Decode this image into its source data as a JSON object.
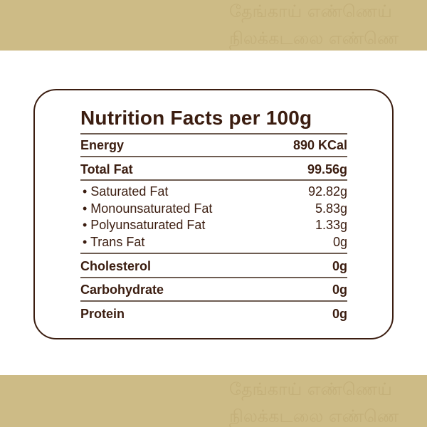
{
  "watermark": {
    "line1": "தேங்காய் எண்ணெய்",
    "line2": "நிலக்கடலை எண்ணெ"
  },
  "colors": {
    "band": "#cdbb86",
    "text": "#3b1d10"
  },
  "title": "Nutrition Facts per 100g",
  "energy": {
    "label": "Energy",
    "value": "890 KCal"
  },
  "total_fat": {
    "label": "Total Fat",
    "value": "99.56g"
  },
  "fats": [
    {
      "label": "• Saturated Fat",
      "value": "92.82g"
    },
    {
      "label": "• Monounsaturated Fat",
      "value": "5.83g"
    },
    {
      "label": "• Polyunsaturated Fat",
      "value": "1.33g"
    },
    {
      "label": "• Trans Fat",
      "value": "0g"
    }
  ],
  "others": [
    {
      "label": "Cholesterol",
      "value": "0g"
    },
    {
      "label": "Carbohydrate",
      "value": "0g"
    },
    {
      "label": "Protein",
      "value": "0g"
    }
  ]
}
